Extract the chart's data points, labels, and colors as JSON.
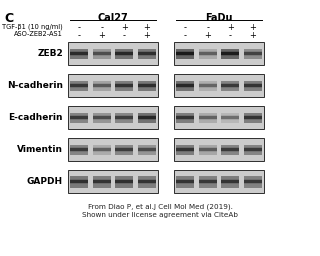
{
  "title_letter": "C",
  "group_labels": [
    "Cal27",
    "FaDu"
  ],
  "row1_label": "TGF-β1 (10 ng/ml)",
  "row2_label": "ASO-ZEB2-AS1",
  "row1_signs": [
    "-",
    "-",
    "+",
    "+",
    "-",
    "-",
    "+",
    "+"
  ],
  "row2_signs": [
    "-",
    "+",
    "-",
    "+",
    "-",
    "+",
    "-",
    "+"
  ],
  "protein_labels": [
    "ZEB2",
    "N-cadherin",
    "E-cadherin",
    "Vimentin",
    "GAPDH"
  ],
  "citation_line1": "From Diao P, et al.J Cell Mol Med (2019).",
  "citation_line2": "Shown under license agreement via CiteAb",
  "panel_bg": "#d8d0c4",
  "panel_bg_dark": "#b8b0a4",
  "panels": {
    "ZEB2": {
      "cal27": [
        0.75,
        0.45,
        0.78,
        0.72
      ],
      "fadu": [
        0.9,
        0.3,
        0.88,
        0.55
      ]
    },
    "N-cadherin": {
      "cal27": [
        0.65,
        0.35,
        0.68,
        0.72
      ],
      "fadu": [
        0.78,
        0.25,
        0.62,
        0.67
      ]
    },
    "E-cadherin": {
      "cal27": [
        0.62,
        0.48,
        0.6,
        0.78
      ],
      "fadu": [
        0.68,
        0.28,
        0.18,
        0.68
      ]
    },
    "Vimentin": {
      "cal27": [
        0.62,
        0.28,
        0.6,
        0.48
      ],
      "fadu": [
        0.68,
        0.32,
        0.62,
        0.62
      ]
    },
    "GAPDH": {
      "cal27": [
        0.72,
        0.68,
        0.72,
        0.68
      ],
      "fadu": [
        0.68,
        0.64,
        0.68,
        0.64
      ]
    }
  }
}
